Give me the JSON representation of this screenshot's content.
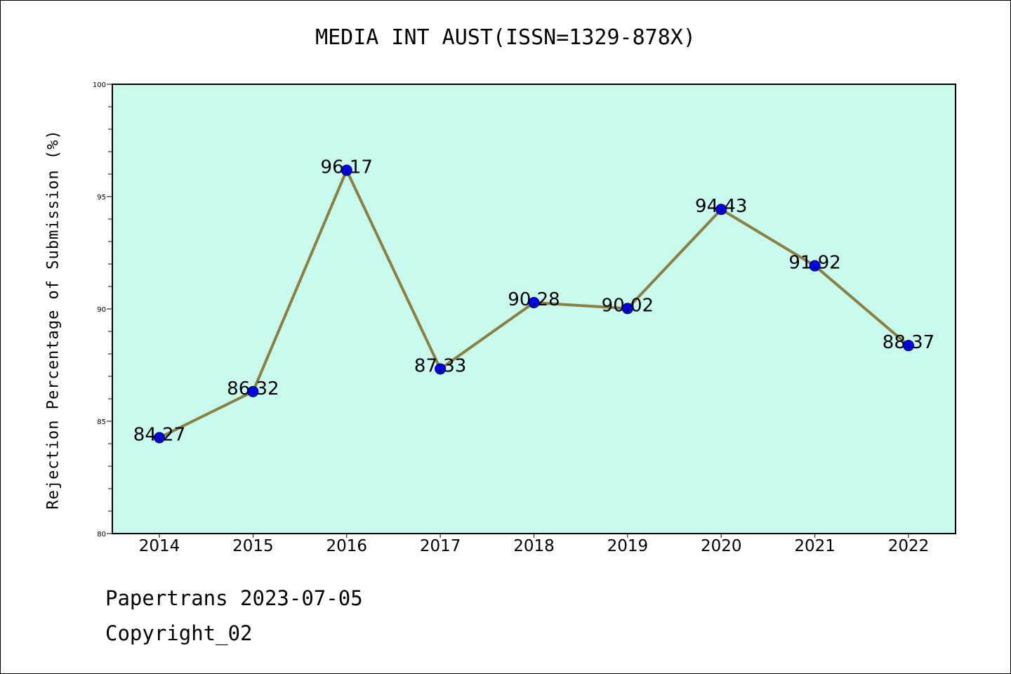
{
  "chart_data": {
    "type": "line",
    "title": "MEDIA INT AUST(ISSN=1329-878X)",
    "ylabel": "Rejection Percentage of Submission (%)",
    "xlabel": "",
    "ylim": [
      80,
      100
    ],
    "y_ticks": [
      80,
      85,
      90,
      95,
      100
    ],
    "categories": [
      "2014",
      "2015",
      "2016",
      "2017",
      "2018",
      "2019",
      "2020",
      "2021",
      "2022"
    ],
    "series": [
      {
        "values": [
          84.27,
          86.32,
          96.17,
          87.33,
          90.28,
          90.02,
          94.43,
          91.92,
          88.37
        ]
      }
    ],
    "data_labels": [
      "84.27",
      "86.32",
      "96.17",
      "87.33",
      "90.28",
      "90.02",
      "94.43",
      "91.92",
      "88.37"
    ],
    "grid": false,
    "colors": {
      "background": "#c8fbee",
      "line": "#8b8040",
      "marker": "#0000ff"
    }
  },
  "footer": {
    "line1": "Papertrans 2023-07-05",
    "line2": "Copyright_02"
  }
}
